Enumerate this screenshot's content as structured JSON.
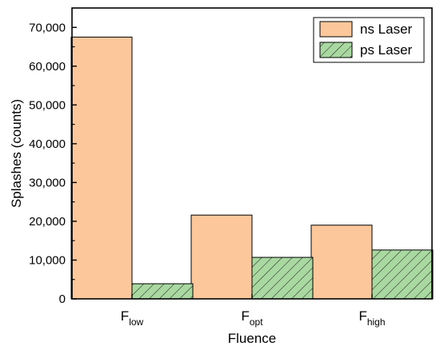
{
  "chart_data": {
    "type": "bar",
    "categories": [
      {
        "base": "F",
        "sub": "low"
      },
      {
        "base": "F",
        "sub": "opt"
      },
      {
        "base": "F",
        "sub": "high"
      }
    ],
    "series": [
      {
        "name": "ns Laser",
        "values": [
          67500,
          21600,
          19000
        ],
        "color": "#fcc89b",
        "pattern": "solid"
      },
      {
        "name": "ps Laser",
        "values": [
          3900,
          10700,
          12600
        ],
        "color": "#a9d8a0",
        "pattern": "hatched"
      }
    ],
    "xlabel": "Fluence",
    "ylabel": "Splashes (counts)",
    "ylim": [
      0,
      75000
    ],
    "yticks": [
      0,
      10000,
      20000,
      30000,
      40000,
      50000,
      60000,
      70000
    ],
    "ytick_labels": [
      "0",
      "10,000",
      "20,000",
      "30,000",
      "40,000",
      "50,000",
      "60,000",
      "70,000"
    ],
    "legend_position": "top-right",
    "grid": false
  }
}
